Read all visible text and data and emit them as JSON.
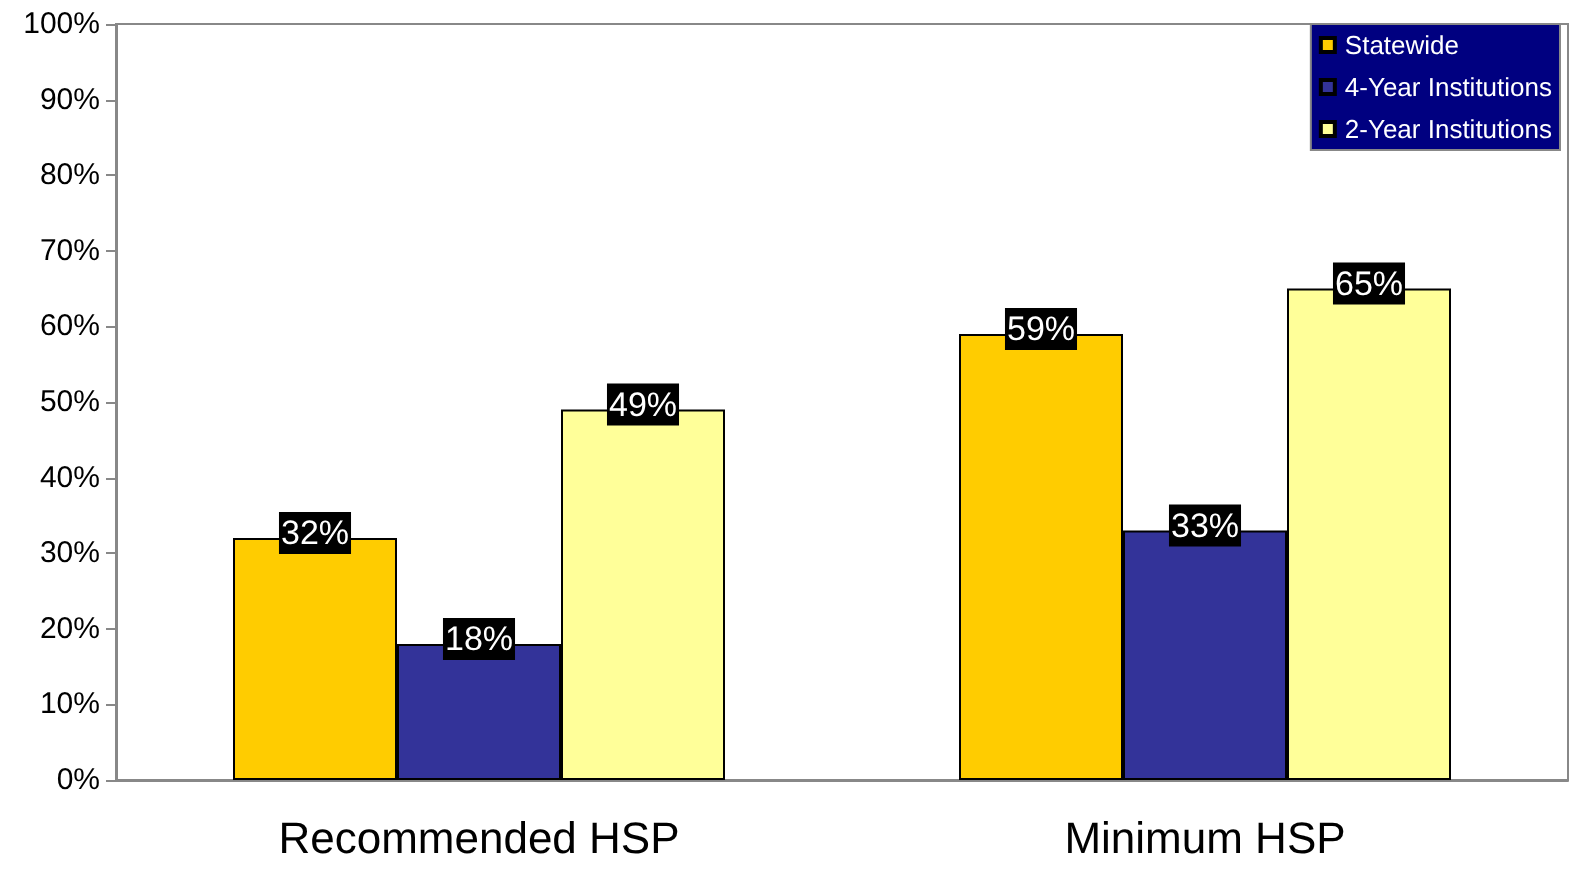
{
  "chart_data": {
    "type": "bar",
    "categories": [
      "Recommended HSP",
      "Minimum HSP"
    ],
    "series": [
      {
        "name": "Statewide",
        "color": "#ffcc00",
        "values": [
          32,
          59
        ],
        "value_labels": [
          "32%",
          "59%"
        ]
      },
      {
        "name": "4-Year Institutions",
        "color": "#333399",
        "values": [
          18,
          33
        ],
        "value_labels": [
          "18%",
          "33%"
        ]
      },
      {
        "name": "2-Year Institutions",
        "color": "#ffff99",
        "values": [
          49,
          65
        ],
        "value_labels": [
          "49%",
          "65%"
        ]
      }
    ],
    "ylim": [
      0,
      100
    ],
    "yticks": [
      {
        "value": 0,
        "label": "0%"
      },
      {
        "value": 10,
        "label": "10%"
      },
      {
        "value": 20,
        "label": "20%"
      },
      {
        "value": 30,
        "label": "30%"
      },
      {
        "value": 40,
        "label": "40%"
      },
      {
        "value": 50,
        "label": "50%"
      },
      {
        "value": 60,
        "label": "60%"
      },
      {
        "value": 70,
        "label": "70%"
      },
      {
        "value": 80,
        "label": "80%"
      },
      {
        "value": 90,
        "label": "90%"
      },
      {
        "value": 100,
        "label": "100%"
      }
    ],
    "grid": false,
    "legend": "top right"
  }
}
